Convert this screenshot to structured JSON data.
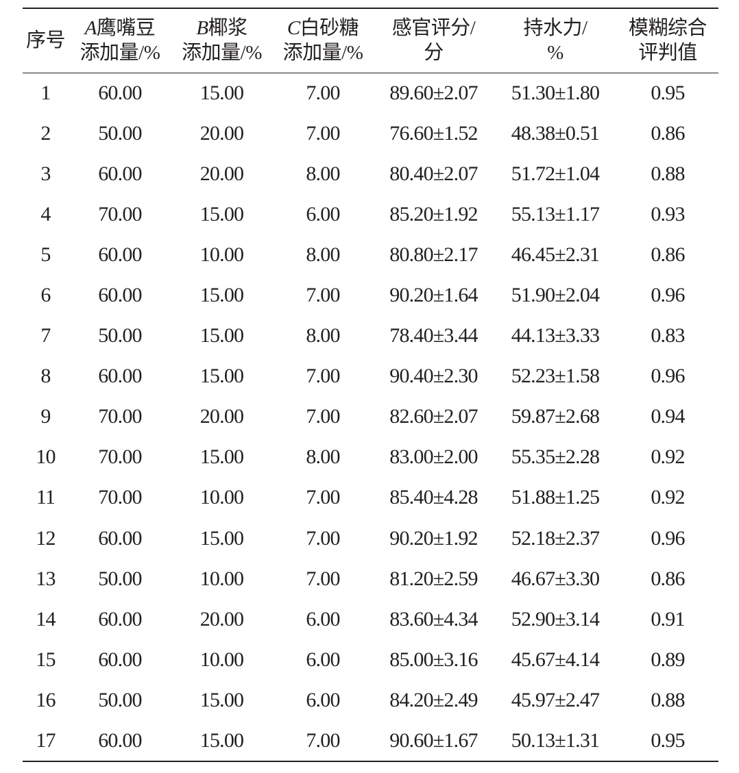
{
  "table": {
    "headers": [
      {
        "letter": "",
        "line1": "序号",
        "line2": ""
      },
      {
        "letter": "A",
        "line1": "鹰嘴豆",
        "line2": "添加量/%"
      },
      {
        "letter": "B",
        "line1": "椰浆",
        "line2": "添加量/%"
      },
      {
        "letter": "C",
        "line1": "白砂糖",
        "line2": "添加量/%"
      },
      {
        "letter": "",
        "line1": "感官评分/",
        "line2": "分"
      },
      {
        "letter": "",
        "line1": "持水力/",
        "line2": "%"
      },
      {
        "letter": "",
        "line1": "模糊综合",
        "line2": "评判值"
      }
    ],
    "rows": [
      [
        "1",
        "60.00",
        "15.00",
        "7.00",
        "89.60±2.07",
        "51.30±1.80",
        "0.95"
      ],
      [
        "2",
        "50.00",
        "20.00",
        "7.00",
        "76.60±1.52",
        "48.38±0.51",
        "0.86"
      ],
      [
        "3",
        "60.00",
        "20.00",
        "8.00",
        "80.40±2.07",
        "51.72±1.04",
        "0.88"
      ],
      [
        "4",
        "70.00",
        "15.00",
        "6.00",
        "85.20±1.92",
        "55.13±1.17",
        "0.93"
      ],
      [
        "5",
        "60.00",
        "10.00",
        "8.00",
        "80.80±2.17",
        "46.45±2.31",
        "0.86"
      ],
      [
        "6",
        "60.00",
        "15.00",
        "7.00",
        "90.20±1.64",
        "51.90±2.04",
        "0.96"
      ],
      [
        "7",
        "50.00",
        "15.00",
        "8.00",
        "78.40±3.44",
        "44.13±3.33",
        "0.83"
      ],
      [
        "8",
        "60.00",
        "15.00",
        "7.00",
        "90.40±2.30",
        "52.23±1.58",
        "0.96"
      ],
      [
        "9",
        "70.00",
        "20.00",
        "7.00",
        "82.60±2.07",
        "59.87±2.68",
        "0.94"
      ],
      [
        "10",
        "70.00",
        "15.00",
        "8.00",
        "83.00±2.00",
        "55.35±2.28",
        "0.92"
      ],
      [
        "11",
        "70.00",
        "10.00",
        "7.00",
        "85.40±4.28",
        "51.88±1.25",
        "0.92"
      ],
      [
        "12",
        "60.00",
        "15.00",
        "7.00",
        "90.20±1.92",
        "52.18±2.37",
        "0.96"
      ],
      [
        "13",
        "50.00",
        "10.00",
        "7.00",
        "81.20±2.59",
        "46.67±3.30",
        "0.86"
      ],
      [
        "14",
        "60.00",
        "20.00",
        "6.00",
        "83.60±4.34",
        "52.90±3.14",
        "0.91"
      ],
      [
        "15",
        "60.00",
        "10.00",
        "6.00",
        "85.00±3.16",
        "45.67±4.14",
        "0.89"
      ],
      [
        "16",
        "50.00",
        "15.00",
        "6.00",
        "84.20±2.49",
        "45.97±2.47",
        "0.88"
      ],
      [
        "17",
        "60.00",
        "15.00",
        "7.00",
        "90.60±1.67",
        "50.13±1.31",
        "0.95"
      ]
    ]
  }
}
